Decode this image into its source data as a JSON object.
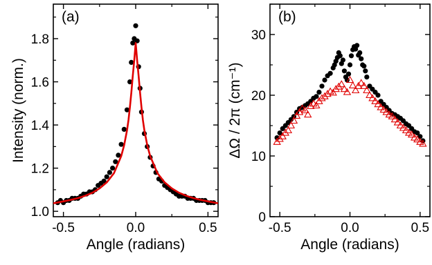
{
  "chart_data": [
    {
      "type": "scatter",
      "panel_label": "(a)",
      "xlabel": "Angle (radians)",
      "ylabel": "Intensity (norm.)",
      "xlim": [
        -0.57,
        0.57
      ],
      "ylim": [
        0.975,
        1.96
      ],
      "xticks": [
        -0.5,
        0.0,
        0.5
      ],
      "xtick_labels": [
        "-0.5",
        "0.0",
        "0.5"
      ],
      "yticks": [
        1.0,
        1.2,
        1.4,
        1.6,
        1.8
      ],
      "ytick_labels": [
        "1.0",
        "1.2",
        "1.4",
        "1.6",
        "1.8"
      ],
      "grid": false,
      "legend": "none",
      "colors": {
        "points": "#000000",
        "fit": "#e00000"
      },
      "series": [
        {
          "kind": "points",
          "x": [
            -0.54,
            -0.52,
            -0.5,
            -0.48,
            -0.46,
            -0.44,
            -0.42,
            -0.4,
            -0.38,
            -0.36,
            -0.34,
            -0.32,
            -0.3,
            -0.28,
            -0.26,
            -0.24,
            -0.22,
            -0.2,
            -0.18,
            -0.16,
            -0.14,
            -0.12,
            -0.1,
            -0.08,
            -0.06,
            -0.04,
            -0.03,
            -0.02,
            -0.01,
            0.0,
            0.01,
            0.02,
            0.03,
            0.04,
            0.06,
            0.08,
            0.1,
            0.12,
            0.14,
            0.16,
            0.18,
            0.2,
            0.22,
            0.24,
            0.26,
            0.28,
            0.3,
            0.32,
            0.34,
            0.36,
            0.38,
            0.4,
            0.42,
            0.44,
            0.46,
            0.48,
            0.5,
            0.52,
            0.54
          ],
          "y": [
            1.04,
            1.05,
            1.04,
            1.05,
            1.05,
            1.06,
            1.06,
            1.06,
            1.07,
            1.08,
            1.08,
            1.09,
            1.09,
            1.1,
            1.12,
            1.13,
            1.14,
            1.16,
            1.18,
            1.2,
            1.23,
            1.26,
            1.31,
            1.38,
            1.47,
            1.6,
            1.69,
            1.78,
            1.8,
            1.86,
            1.79,
            1.67,
            1.57,
            1.46,
            1.36,
            1.3,
            1.25,
            1.21,
            1.18,
            1.15,
            1.14,
            1.12,
            1.11,
            1.1,
            1.09,
            1.08,
            1.07,
            1.07,
            1.07,
            1.06,
            1.06,
            1.06,
            1.05,
            1.05,
            1.05,
            1.05,
            1.04,
            1.04,
            1.04
          ]
        },
        {
          "kind": "fit-line",
          "x": [
            -0.57,
            -0.5,
            -0.45,
            -0.4,
            -0.35,
            -0.3,
            -0.25,
            -0.2,
            -0.15,
            -0.1,
            -0.08,
            -0.06,
            -0.05,
            -0.04,
            -0.03,
            -0.02,
            -0.01,
            0.0,
            0.01,
            0.02,
            0.03,
            0.04,
            0.05,
            0.06,
            0.08,
            0.1,
            0.15,
            0.2,
            0.25,
            0.3,
            0.35,
            0.4,
            0.45,
            0.5,
            0.57
          ],
          "y": [
            1.037,
            1.046,
            1.053,
            1.061,
            1.072,
            1.086,
            1.106,
            1.134,
            1.177,
            1.256,
            1.306,
            1.376,
            1.423,
            1.481,
            1.55,
            1.628,
            1.699,
            1.78,
            1.699,
            1.628,
            1.55,
            1.481,
            1.423,
            1.376,
            1.306,
            1.256,
            1.177,
            1.134,
            1.106,
            1.086,
            1.072,
            1.061,
            1.053,
            1.046,
            1.037
          ]
        }
      ]
    },
    {
      "type": "scatter",
      "panel_label": "(b)",
      "xlabel": "Angle (radians)",
      "ylabel": "ΔΩ / 2π (cm⁻¹)",
      "xlim": [
        -0.57,
        0.57
      ],
      "ylim": [
        0,
        35
      ],
      "xticks": [
        -0.5,
        0.0,
        0.5
      ],
      "xtick_labels": [
        "-0.5",
        "0.0",
        "0.5"
      ],
      "yticks": [
        0,
        10,
        20,
        30
      ],
      "ytick_labels": [
        "0",
        "10",
        "20",
        "30"
      ],
      "grid": false,
      "legend": "none",
      "colors": {
        "filled": "#000000",
        "open": "#e00000"
      },
      "series": [
        {
          "marker": "filled-circle",
          "x": [
            -0.52,
            -0.5,
            -0.48,
            -0.46,
            -0.44,
            -0.42,
            -0.4,
            -0.38,
            -0.36,
            -0.34,
            -0.32,
            -0.3,
            -0.28,
            -0.26,
            -0.24,
            -0.22,
            -0.2,
            -0.18,
            -0.16,
            -0.14,
            -0.12,
            -0.11,
            -0.1,
            -0.09,
            -0.08,
            -0.07,
            -0.06,
            -0.05,
            -0.04,
            -0.03,
            -0.02,
            -0.01,
            0.0,
            0.01,
            0.02,
            0.03,
            0.04,
            0.05,
            0.06,
            0.07,
            0.08,
            0.09,
            0.1,
            0.11,
            0.12,
            0.14,
            0.16,
            0.18,
            0.2,
            0.22,
            0.24,
            0.26,
            0.28,
            0.3,
            0.32,
            0.34,
            0.36,
            0.38,
            0.4,
            0.42,
            0.44,
            0.46,
            0.48,
            0.5,
            0.52
          ],
          "y": [
            13.0,
            13.8,
            14.5,
            15.0,
            15.5,
            16.0,
            16.5,
            17.2,
            17.8,
            18.0,
            18.3,
            18.6,
            19.0,
            19.5,
            19.8,
            20.5,
            21.5,
            22.5,
            23.2,
            23.6,
            24.5,
            25.0,
            25.6,
            26.2,
            27.0,
            26.5,
            25.2,
            25.8,
            24.0,
            23.0,
            22.5,
            23.5,
            25.0,
            26.5,
            27.5,
            28.0,
            27.6,
            28.2,
            26.6,
            27.0,
            26.0,
            25.0,
            24.8,
            24.0,
            23.0,
            21.5,
            21.0,
            20.5,
            20.0,
            19.0,
            18.5,
            18.0,
            17.5,
            17.0,
            16.8,
            16.5,
            16.2,
            15.8,
            15.3,
            15.0,
            14.5,
            14.0,
            13.8,
            13.2,
            12.5
          ]
        },
        {
          "marker": "open-triangle",
          "x": [
            -0.52,
            -0.5,
            -0.48,
            -0.46,
            -0.44,
            -0.42,
            -0.4,
            -0.38,
            -0.36,
            -0.34,
            -0.32,
            -0.3,
            -0.28,
            -0.26,
            -0.24,
            -0.22,
            -0.2,
            -0.18,
            -0.16,
            -0.14,
            -0.12,
            -0.1,
            -0.08,
            -0.06,
            -0.04,
            -0.02,
            0.0,
            0.02,
            0.04,
            0.06,
            0.08,
            0.1,
            0.12,
            0.14,
            0.16,
            0.18,
            0.2,
            0.22,
            0.24,
            0.26,
            0.28,
            0.3,
            0.32,
            0.34,
            0.36,
            0.38,
            0.4,
            0.42,
            0.44,
            0.46,
            0.48,
            0.5,
            0.52
          ],
          "y": [
            12.3,
            12.8,
            13.2,
            13.8,
            14.2,
            15.0,
            15.8,
            16.6,
            17.2,
            17.8,
            17.5,
            16.8,
            18.2,
            18.6,
            18.3,
            19.0,
            19.5,
            19.8,
            20.2,
            20.6,
            20.4,
            21.0,
            21.4,
            21.8,
            21.0,
            20.5,
            22.5,
            21.6,
            20.8,
            21.5,
            22.0,
            21.5,
            20.8,
            20.0,
            19.5,
            19.0,
            18.5,
            18.0,
            17.6,
            17.2,
            16.8,
            16.5,
            16.0,
            15.5,
            15.0,
            14.6,
            14.2,
            13.8,
            13.5,
            13.0,
            12.7,
            12.3,
            12.0
          ]
        }
      ]
    }
  ]
}
